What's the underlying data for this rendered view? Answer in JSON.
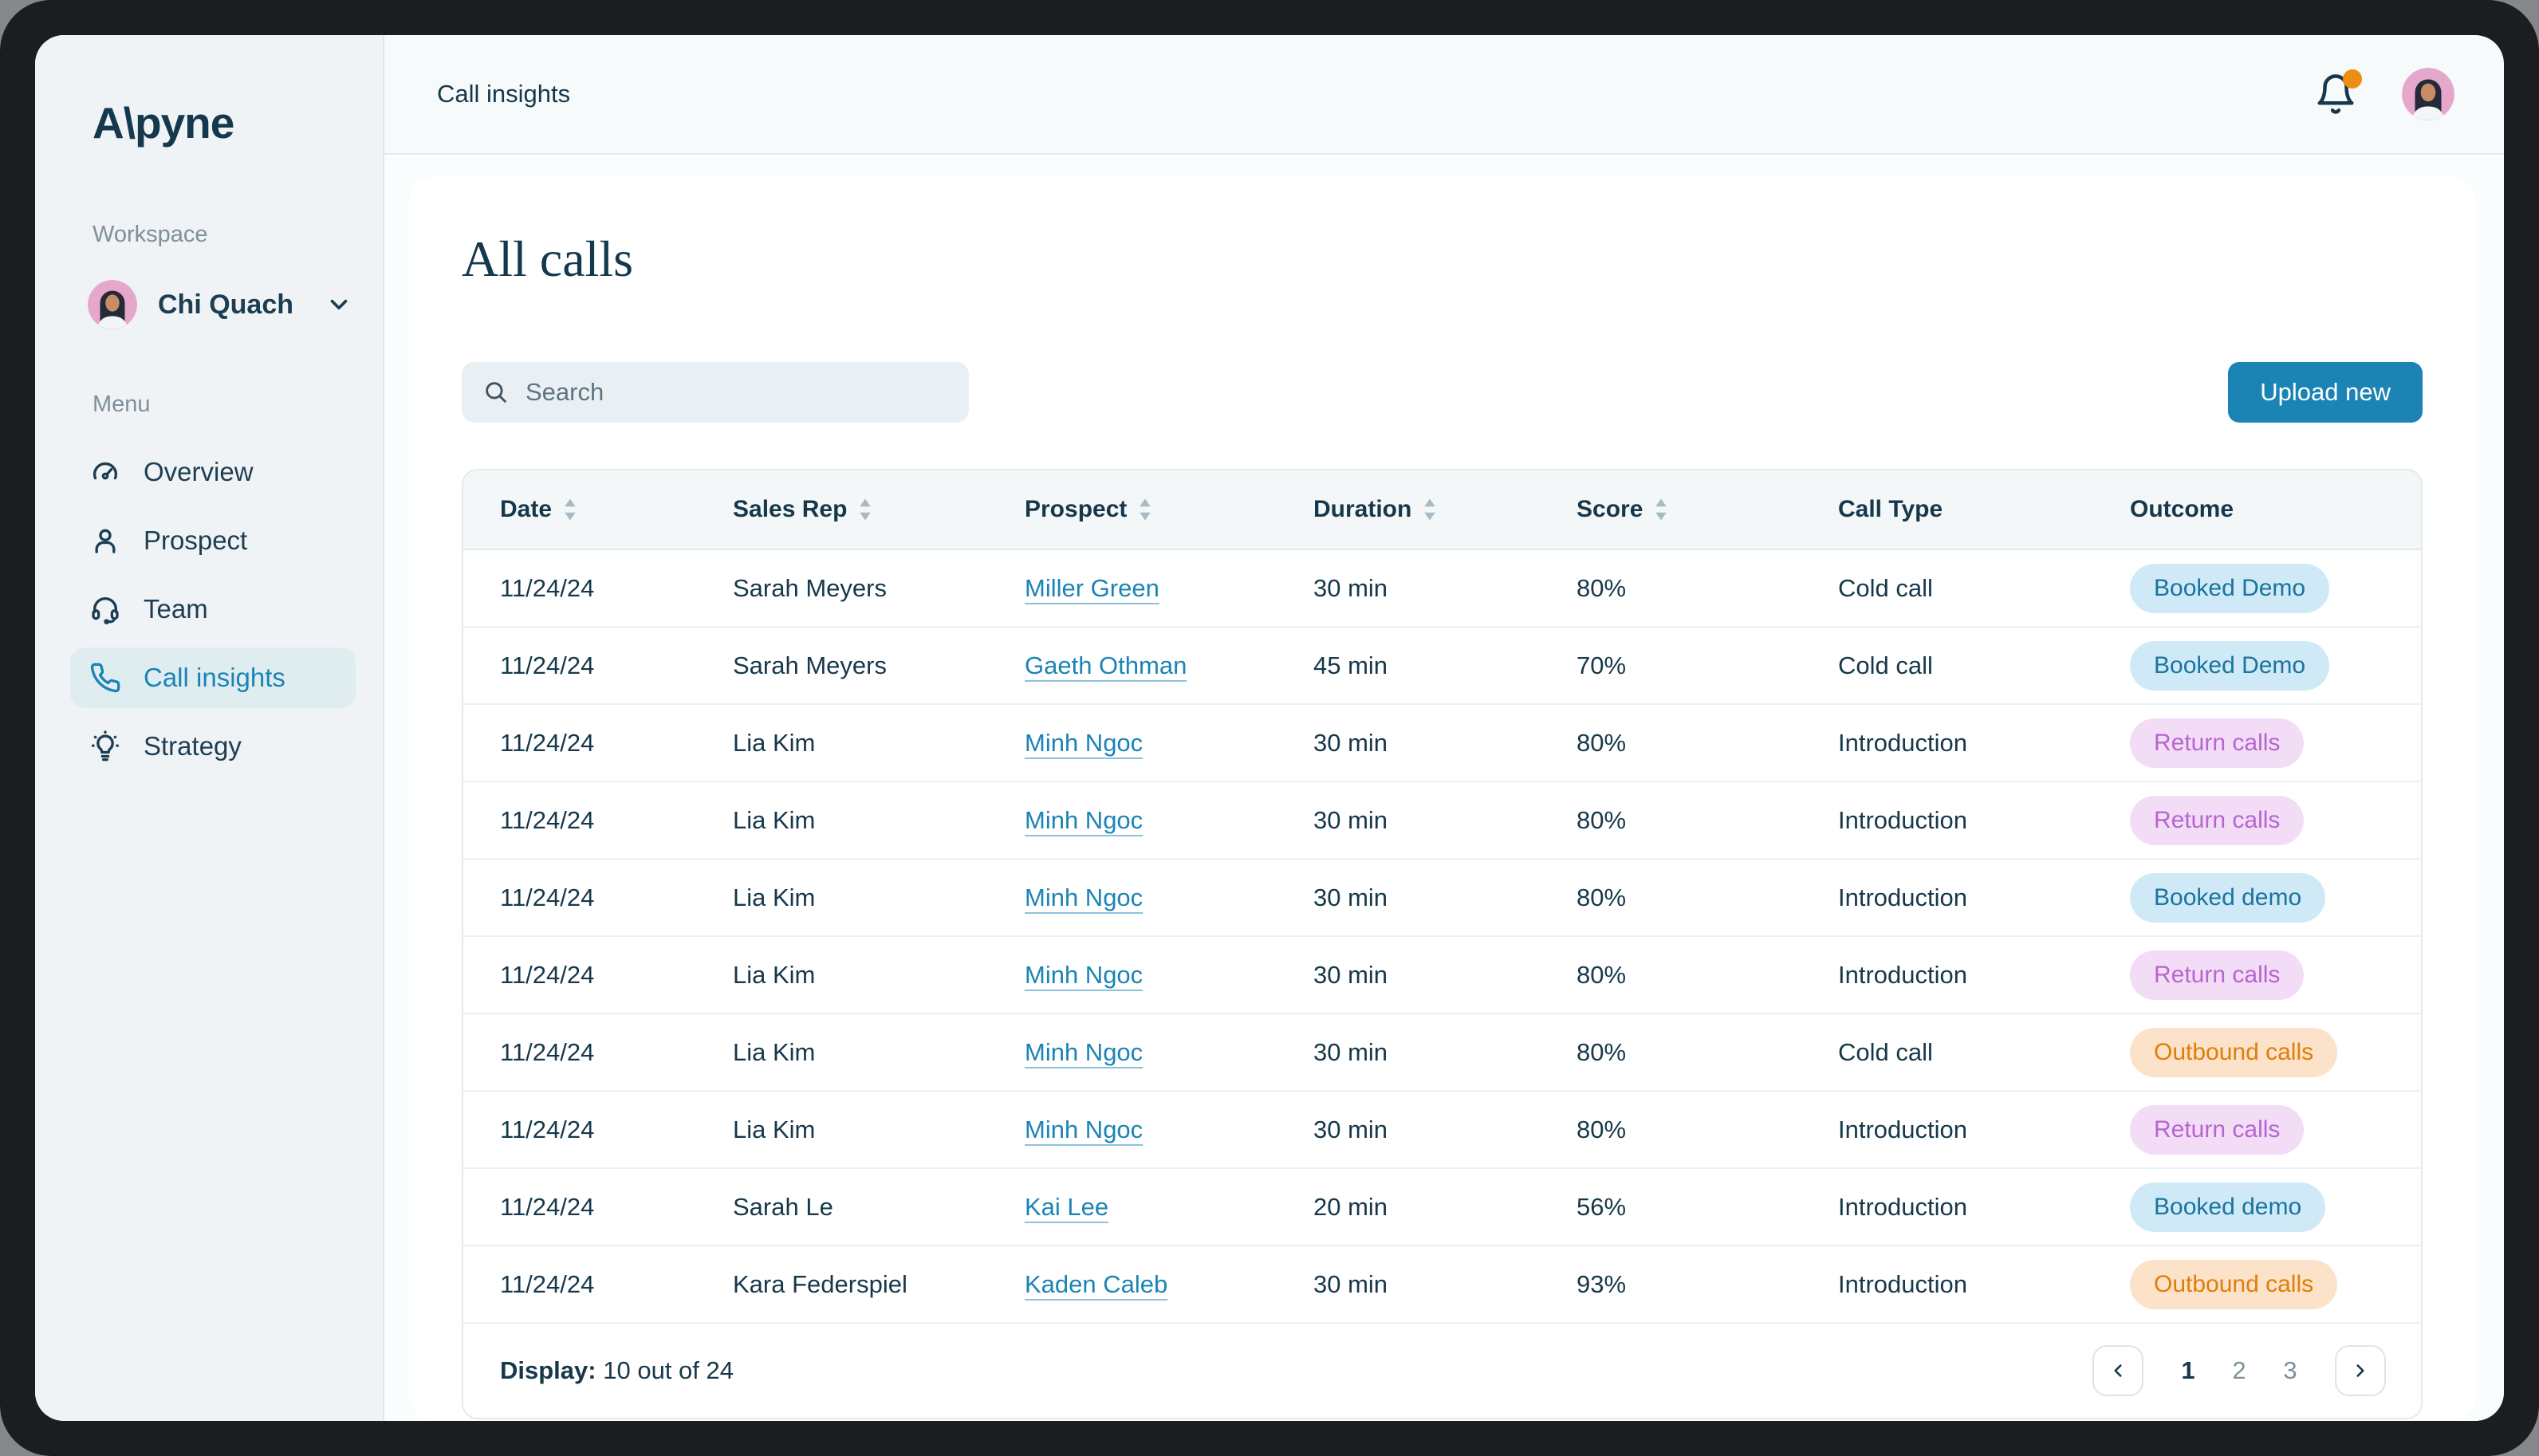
{
  "app": {
    "logo": "A\\pyne"
  },
  "sidebar": {
    "workspace_label": "Workspace",
    "workspace": {
      "name": "Chi Quach"
    },
    "menu_label": "Menu",
    "items": [
      {
        "label": "Overview",
        "icon": "gauge-icon",
        "active": false
      },
      {
        "label": "Prospect",
        "icon": "person-icon",
        "active": false
      },
      {
        "label": "Team",
        "icon": "headset-icon",
        "active": false
      },
      {
        "label": "Call insights",
        "icon": "phone-icon",
        "active": true
      },
      {
        "label": "Strategy",
        "icon": "lightbulb-icon",
        "active": false
      }
    ]
  },
  "topbar": {
    "title": "Call insights",
    "has_notification_dot": true
  },
  "page": {
    "title": "All calls",
    "search_placeholder": "Search",
    "upload_button_label": "Upload new"
  },
  "table": {
    "columns": [
      {
        "label": "Date",
        "sortable": true
      },
      {
        "label": "Sales Rep",
        "sortable": true
      },
      {
        "label": "Prospect",
        "sortable": true
      },
      {
        "label": "Duration",
        "sortable": true
      },
      {
        "label": "Score",
        "sortable": true
      },
      {
        "label": "Call Type",
        "sortable": false
      },
      {
        "label": "Outcome",
        "sortable": false
      }
    ],
    "rows": [
      {
        "date": "11/24/24",
        "rep": "Sarah Meyers",
        "prospect": "Miller Green",
        "duration": "30 min",
        "score": "80%",
        "call_type": "Cold call",
        "outcome": "Booked Demo",
        "outcome_variant": "booked"
      },
      {
        "date": "11/24/24",
        "rep": "Sarah Meyers",
        "prospect": "Gaeth Othman",
        "duration": "45 min",
        "score": "70%",
        "call_type": "Cold call",
        "outcome": "Booked Demo",
        "outcome_variant": "booked"
      },
      {
        "date": "11/24/24",
        "rep": "Lia Kim",
        "prospect": "Minh Ngoc",
        "duration": "30 min",
        "score": "80%",
        "call_type": "Introduction",
        "outcome": "Return calls",
        "outcome_variant": "return"
      },
      {
        "date": "11/24/24",
        "rep": "Lia Kim",
        "prospect": "Minh Ngoc",
        "duration": "30 min",
        "score": "80%",
        "call_type": "Introduction",
        "outcome": "Return calls",
        "outcome_variant": "return"
      },
      {
        "date": "11/24/24",
        "rep": "Lia Kim",
        "prospect": "Minh Ngoc",
        "duration": "30 min",
        "score": "80%",
        "call_type": "Introduction",
        "outcome": "Booked demo",
        "outcome_variant": "booked"
      },
      {
        "date": "11/24/24",
        "rep": "Lia Kim",
        "prospect": "Minh Ngoc",
        "duration": "30 min",
        "score": "80%",
        "call_type": "Introduction",
        "outcome": "Return calls",
        "outcome_variant": "return"
      },
      {
        "date": "11/24/24",
        "rep": "Lia Kim",
        "prospect": "Minh Ngoc",
        "duration": "30 min",
        "score": "80%",
        "call_type": "Cold call",
        "outcome": "Outbound calls",
        "outcome_variant": "outbound"
      },
      {
        "date": "11/24/24",
        "rep": "Lia Kim",
        "prospect": "Minh Ngoc",
        "duration": "30 min",
        "score": "80%",
        "call_type": "Introduction",
        "outcome": "Return calls",
        "outcome_variant": "return"
      },
      {
        "date": "11/24/24",
        "rep": "Sarah Le",
        "prospect": "Kai Lee",
        "duration": "20 min",
        "score": "56%",
        "call_type": "Introduction",
        "outcome": "Booked demo",
        "outcome_variant": "booked"
      },
      {
        "date": "11/24/24",
        "rep": "Kara Federspiel",
        "prospect": "Kaden Caleb",
        "duration": "30 min",
        "score": "93%",
        "call_type": "Introduction",
        "outcome": "Outbound calls",
        "outcome_variant": "outbound"
      }
    ],
    "footer": {
      "display_label": "Display:",
      "display_value": "10 out of 24",
      "pages": [
        "1",
        "2",
        "3"
      ],
      "current_page": "1"
    }
  },
  "colors": {
    "accent": "#1b84b5",
    "dark_navy": "#16384a",
    "notification_dot": "#ed8d14",
    "badge_booked_bg": "#cfe9f6",
    "badge_booked_text": "#19749e",
    "badge_return_bg": "#f2dcf6",
    "badge_return_text": "#b765d0",
    "badge_outbound_bg": "#fbe2c9",
    "badge_outbound_text": "#e07e08",
    "avatar_bg": "#e5a7cb"
  }
}
